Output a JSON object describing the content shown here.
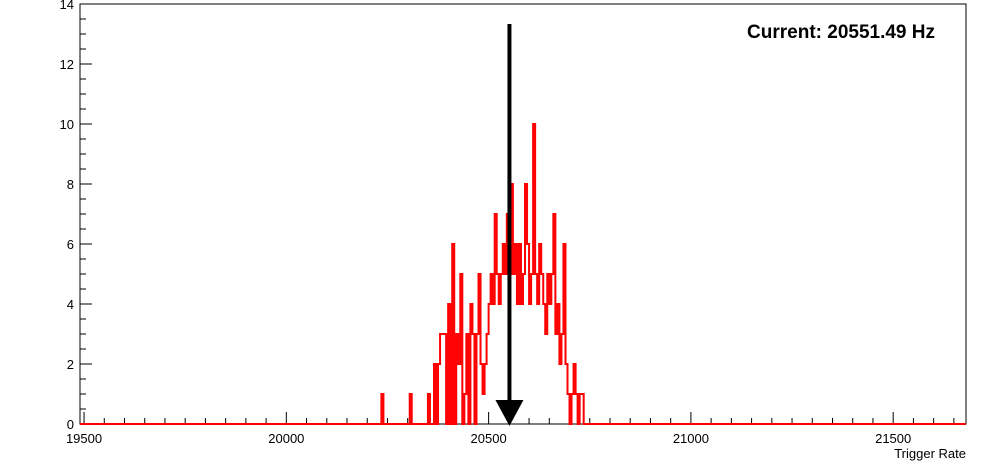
{
  "chart_data": {
    "type": "histogram",
    "title": "",
    "xlabel": "Trigger Rate",
    "ylabel": "",
    "annotation": "Current: 20551.49 Hz",
    "marker_x": 20551.49,
    "xlim": [
      19490,
      21680
    ],
    "ylim": [
      0,
      14
    ],
    "x_ticks": [
      19500,
      20000,
      20500,
      21000,
      21500
    ],
    "y_ticks": [
      0,
      2,
      4,
      6,
      8,
      10,
      12,
      14
    ],
    "grid": false,
    "series": [
      {
        "color": "#ff0000",
        "bin_width": 5,
        "bins": [
          [
            20235,
            1
          ],
          [
            20305,
            1
          ],
          [
            20350,
            1
          ],
          [
            20365,
            2
          ],
          [
            20375,
            2
          ],
          [
            20380,
            3
          ],
          [
            20385,
            3
          ],
          [
            20390,
            3
          ],
          [
            20400,
            4
          ],
          [
            20410,
            6
          ],
          [
            20420,
            3
          ],
          [
            20425,
            2
          ],
          [
            20430,
            5
          ],
          [
            20440,
            1
          ],
          [
            20445,
            3
          ],
          [
            20455,
            4
          ],
          [
            20460,
            3
          ],
          [
            20470,
            3
          ],
          [
            20475,
            5
          ],
          [
            20480,
            2
          ],
          [
            20485,
            1
          ],
          [
            20490,
            2
          ],
          [
            20495,
            3
          ],
          [
            20500,
            4
          ],
          [
            20505,
            5
          ],
          [
            20510,
            4
          ],
          [
            20515,
            7
          ],
          [
            20520,
            5
          ],
          [
            20525,
            4
          ],
          [
            20530,
            5
          ],
          [
            20535,
            6
          ],
          [
            20540,
            5
          ],
          [
            20545,
            7
          ],
          [
            20550,
            5
          ],
          [
            20555,
            8
          ],
          [
            20560,
            5
          ],
          [
            20565,
            6
          ],
          [
            20570,
            4
          ],
          [
            20575,
            6
          ],
          [
            20580,
            4
          ],
          [
            20585,
            5
          ],
          [
            20590,
            8
          ],
          [
            20595,
            6
          ],
          [
            20600,
            4
          ],
          [
            20605,
            5
          ],
          [
            20610,
            10
          ],
          [
            20615,
            5
          ],
          [
            20620,
            4
          ],
          [
            20625,
            6
          ],
          [
            20630,
            5
          ],
          [
            20635,
            4
          ],
          [
            20640,
            3
          ],
          [
            20645,
            5
          ],
          [
            20650,
            4
          ],
          [
            20655,
            5
          ],
          [
            20660,
            7
          ],
          [
            20665,
            3
          ],
          [
            20670,
            4
          ],
          [
            20675,
            2
          ],
          [
            20680,
            3
          ],
          [
            20685,
            6
          ],
          [
            20690,
            2
          ],
          [
            20695,
            1
          ],
          [
            20705,
            1
          ],
          [
            20710,
            2
          ],
          [
            20715,
            1
          ],
          [
            20725,
            1
          ],
          [
            20730,
            1
          ]
        ]
      }
    ]
  }
}
